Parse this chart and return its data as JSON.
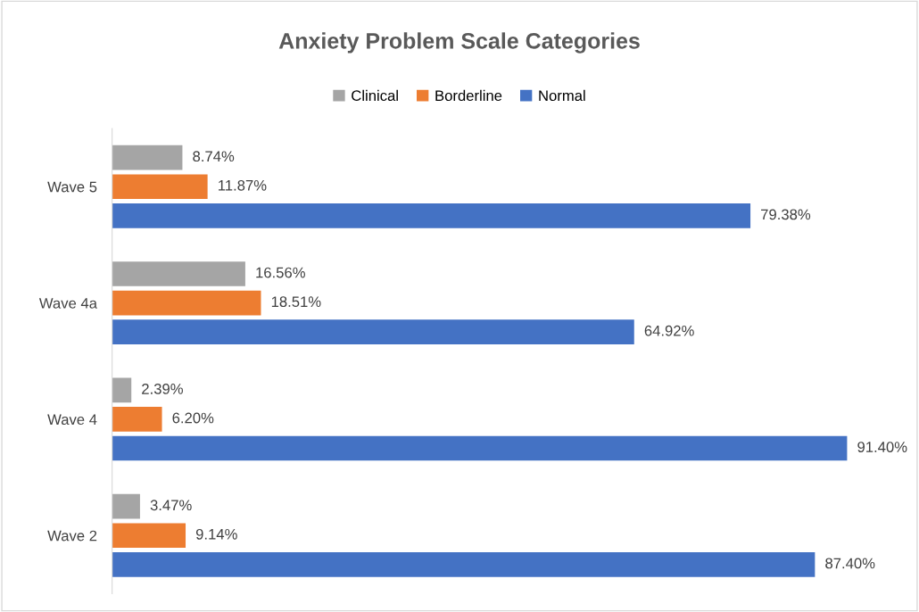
{
  "chart_data": {
    "type": "bar",
    "orientation": "horizontal",
    "title": "Anxiety Problem Scale Categories",
    "categories": [
      "Wave 5",
      "Wave 4a",
      "Wave 4",
      "Wave 2"
    ],
    "series": [
      {
        "name": "Clinical",
        "color": "#a5a5a5",
        "values": [
          8.74,
          16.56,
          2.39,
          3.47
        ],
        "value_labels": [
          "8.74%",
          "16.56%",
          "2.39%",
          "3.47%"
        ]
      },
      {
        "name": "Borderline",
        "color": "#ed7d31",
        "values": [
          11.87,
          18.51,
          6.2,
          9.14
        ],
        "value_labels": [
          "11.87%",
          "18.51%",
          "6.20%",
          "9.14%"
        ]
      },
      {
        "name": "Normal",
        "color": "#4472c4",
        "values": [
          79.38,
          64.92,
          91.4,
          87.4
        ],
        "value_labels": [
          "79.38%",
          "64.92%",
          "91.40%",
          "87.40%"
        ]
      }
    ],
    "xlim": [
      0,
      100
    ],
    "tick_labels": "y",
    "grid": false,
    "legend": "top"
  }
}
